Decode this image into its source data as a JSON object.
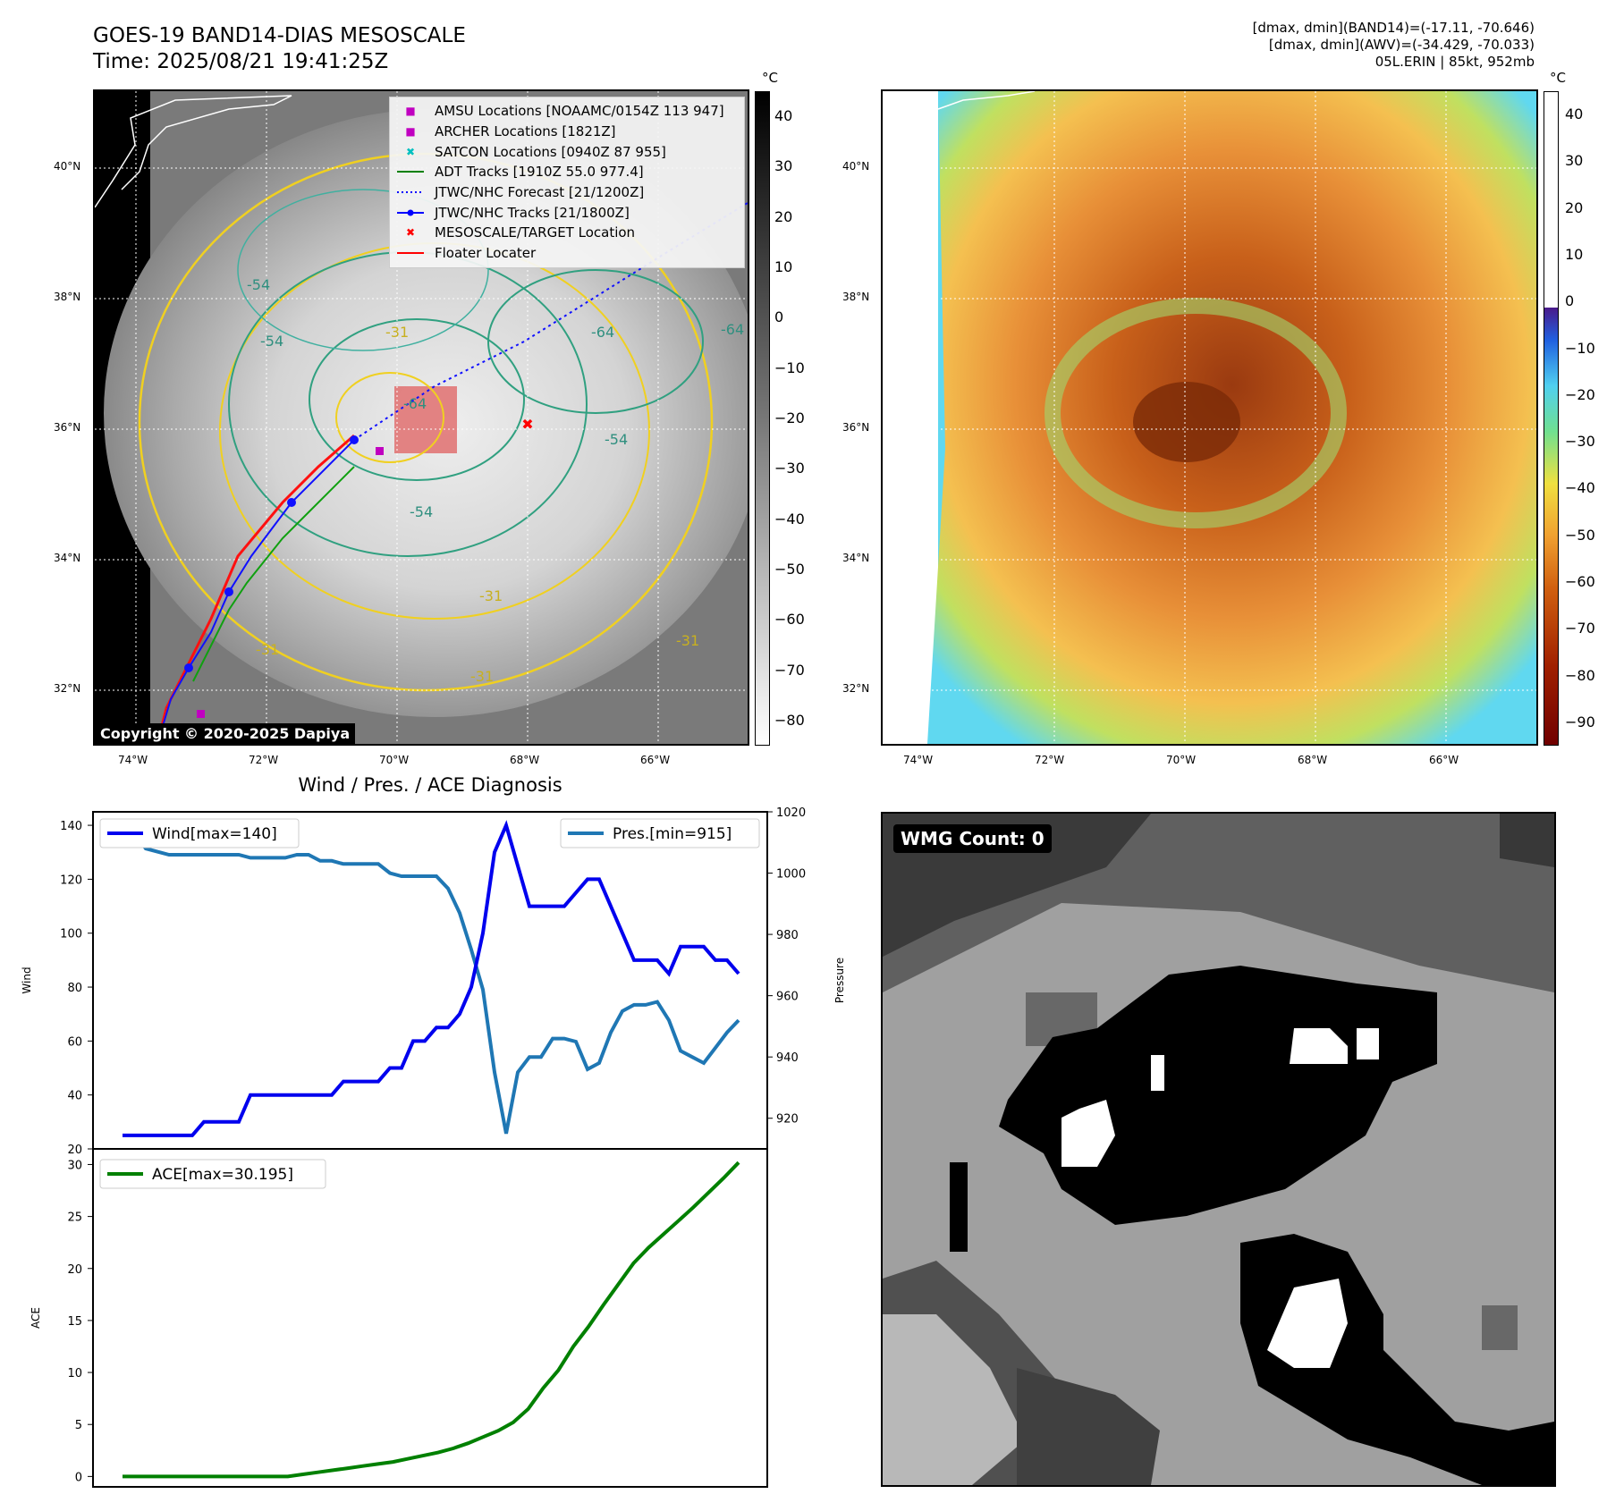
{
  "header": {
    "title_line1": "GOES-19 BAND14-DIAS MESOSCALE",
    "title_line2": "Time: 2025/08/21 19:41:25Z",
    "info_line1": "[dmax, dmin](BAND14)=(-17.11, -70.646)",
    "info_line2": "[dmax, dmin](AWV)=(-34.429, -70.033)",
    "info_line3": "05L.ERIN | 85kt, 952mb"
  },
  "map": {
    "lat_ticks": [
      "40°N",
      "38°N",
      "36°N",
      "34°N",
      "32°N"
    ],
    "lon_ticks": [
      "74°W",
      "72°W",
      "70°W",
      "68°W",
      "66°W"
    ],
    "legend": [
      {
        "label": "AMSU Locations [NOAAMC/0154Z 113 947]",
        "symbol": "■",
        "color": "#c000c0"
      },
      {
        "label": "ARCHER Locations [1821Z]",
        "symbol": "■",
        "color": "#c000c0"
      },
      {
        "label": "SATCON Locations [0940Z 87 955]",
        "symbol": "✖",
        "color": "#00c0c0"
      },
      {
        "label": "ADT Tracks [1910Z 55.0 977.4]",
        "symbol": "line",
        "color": "#008000"
      },
      {
        "label": "JTWC/NHC Forecast [21/1200Z]",
        "symbol": "dotted",
        "color": "#0000ff"
      },
      {
        "label": "JTWC/NHC Tracks [21/1800Z]",
        "symbol": "linedot",
        "color": "#0000ff"
      },
      {
        "label": "MESOSCALE/TARGET Location",
        "symbol": "✖",
        "color": "#ff0000"
      },
      {
        "label": "Floater Locater",
        "symbol": "line",
        "color": "#ff0000"
      }
    ],
    "contour_labels": [
      "-54",
      "-54",
      "-54",
      "-64",
      "-64",
      "-64",
      "-54",
      "-31",
      "-31",
      "-31",
      "-31",
      "-31"
    ],
    "copyright": "Copyright © 2020-2025 Dapiya"
  },
  "colorbar_left": {
    "unit": "°C",
    "ticks": [
      "40",
      "30",
      "20",
      "10",
      "0",
      "−10",
      "−20",
      "−30",
      "−40",
      "−50",
      "−60",
      "−70",
      "−80"
    ]
  },
  "colorbar_right": {
    "unit": "°C",
    "ticks": [
      "40",
      "30",
      "20",
      "10",
      "0",
      "−10",
      "−20",
      "−30",
      "−40",
      "−50",
      "−60",
      "−70",
      "−80",
      "−90"
    ]
  },
  "diagnosis": {
    "title": "Wind / Pres. / ACE Diagnosis"
  },
  "wmg": {
    "label": "WMG Count: 0"
  },
  "chart_data": [
    {
      "type": "line",
      "title": "Wind / Pres. / ACE Diagnosis",
      "ylabel": "Wind",
      "y2label": "Pressure",
      "ylim": [
        20,
        145
      ],
      "y2lim": [
        910,
        1020
      ],
      "yticks": [
        20,
        40,
        60,
        80,
        100,
        120,
        140
      ],
      "y2ticks": [
        920,
        940,
        960,
        980,
        1000,
        1020
      ],
      "series": [
        {
          "name": "Wind[max=140]",
          "axis": "left",
          "color": "#0000ee",
          "values": [
            25,
            25,
            25,
            25,
            25,
            25,
            25,
            30,
            30,
            30,
            30,
            40,
            40,
            40,
            40,
            40,
            40,
            40,
            40,
            45,
            45,
            45,
            45,
            50,
            50,
            60,
            60,
            65,
            65,
            70,
            80,
            100,
            130,
            140,
            125,
            110,
            110,
            110,
            110,
            115,
            120,
            120,
            110,
            100,
            90,
            90,
            90,
            85,
            95,
            95,
            95,
            90,
            90,
            85
          ]
        },
        {
          "name": "Pres.[min=915]",
          "axis": "right",
          "color": "#1f77b4",
          "values": [
            1013,
            1013,
            1008,
            1007,
            1006,
            1006,
            1006,
            1006,
            1006,
            1006,
            1006,
            1005,
            1005,
            1005,
            1005,
            1006,
            1006,
            1004,
            1004,
            1003,
            1003,
            1003,
            1003,
            1000,
            999,
            999,
            999,
            999,
            995,
            987,
            975,
            962,
            935,
            915,
            935,
            940,
            940,
            946,
            946,
            945,
            936,
            938,
            948,
            955,
            957,
            957,
            958,
            952,
            942,
            940,
            938,
            943,
            948,
            952
          ]
        }
      ]
    },
    {
      "type": "line",
      "ylabel": "ACE",
      "ylim": [
        -1,
        31.5
      ],
      "yticks": [
        0,
        5,
        10,
        15,
        20,
        25,
        30
      ],
      "series": [
        {
          "name": "ACE[max=30.195]",
          "color": "#008000",
          "values": [
            0,
            0,
            0,
            0,
            0,
            0,
            0,
            0,
            0,
            0,
            0,
            0,
            0.2,
            0.4,
            0.6,
            0.8,
            1.0,
            1.2,
            1.4,
            1.7,
            2.0,
            2.3,
            2.7,
            3.2,
            3.8,
            4.4,
            5.2,
            6.5,
            8.5,
            10.2,
            12.5,
            14.4,
            16.5,
            18.5,
            20.5,
            22,
            23.3,
            24.6,
            25.9,
            27.3,
            28.7,
            30.195
          ]
        }
      ]
    }
  ]
}
